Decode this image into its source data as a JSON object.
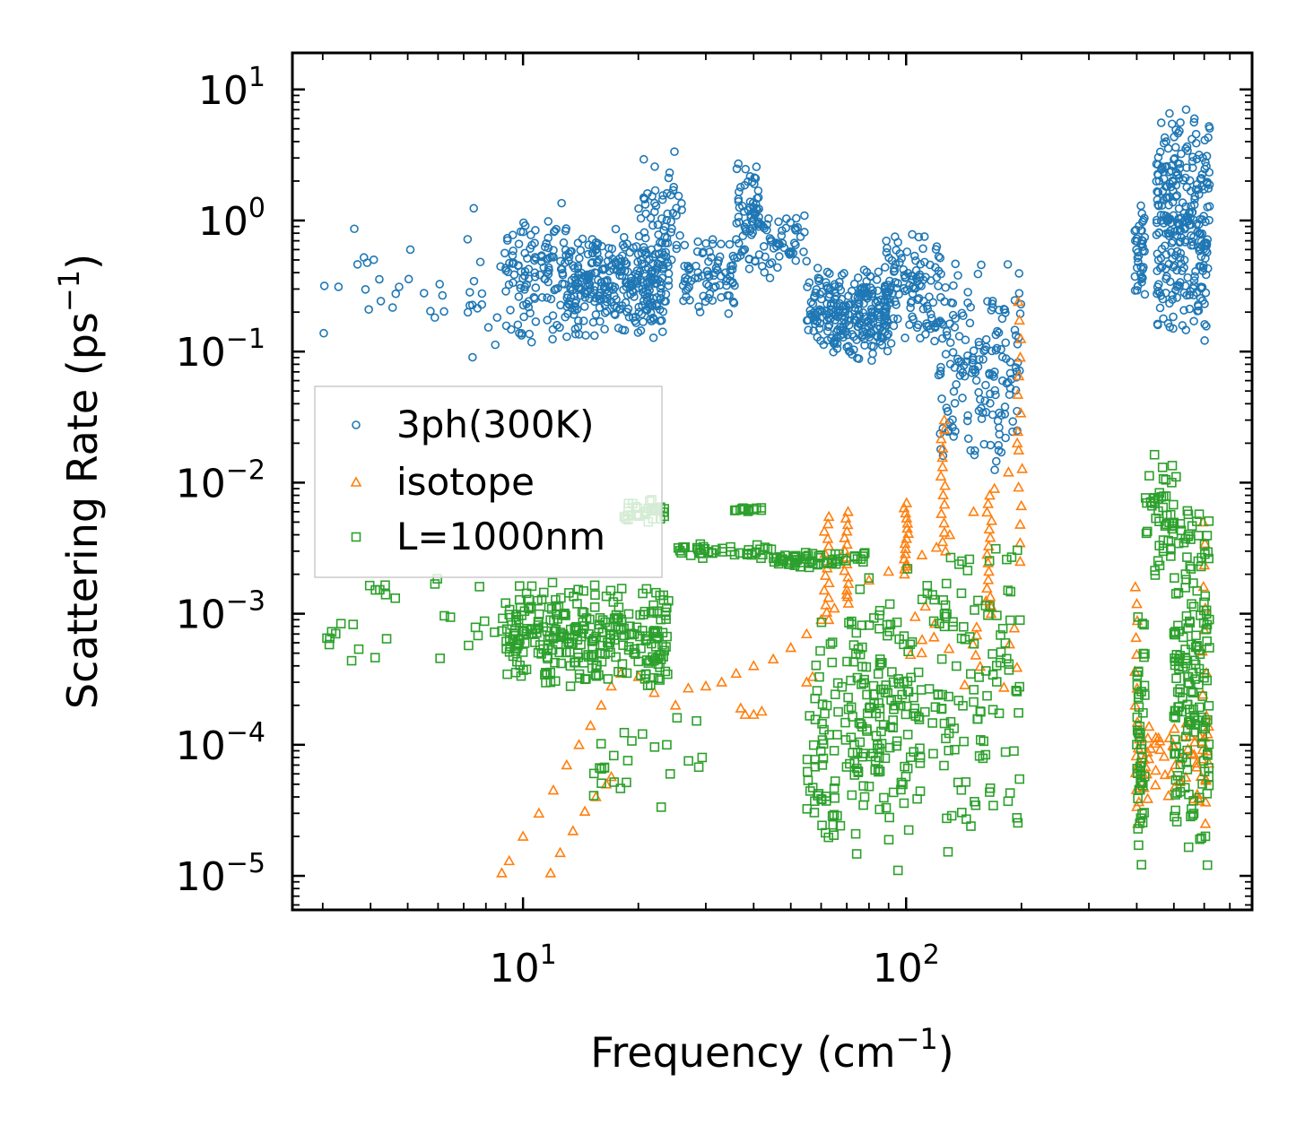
{
  "chart_data": {
    "type": "scatter",
    "xscale": "log",
    "yscale": "log",
    "xlim": [
      2.5,
      800
    ],
    "ylim": [
      5.5e-06,
      19
    ],
    "xlabel": "Frequency (cm",
    "xlabel_sup": "−1",
    "xlabel_tail": ")",
    "ylabel": "Scattering Rate (ps",
    "ylabel_sup": "−1",
    "ylabel_tail": ")",
    "legend_position": "center-left",
    "x_ticks": [
      {
        "value": 10,
        "base": "10",
        "exp": "1"
      },
      {
        "value": 100,
        "base": "10",
        "exp": "2"
      }
    ],
    "y_ticks": [
      {
        "value": 10,
        "base": "10",
        "exp": "1"
      },
      {
        "value": 1,
        "base": "10",
        "exp": "0"
      },
      {
        "value": 0.1,
        "base": "10",
        "exp": "−1"
      },
      {
        "value": 0.01,
        "base": "10",
        "exp": "−2"
      },
      {
        "value": 0.001,
        "base": "10",
        "exp": "−3"
      },
      {
        "value": 0.0001,
        "base": "10",
        "exp": "−4"
      },
      {
        "value": 1e-05,
        "base": "10",
        "exp": "−5"
      }
    ],
    "series": [
      {
        "name": "3ph(300K)",
        "marker": "circle",
        "color": "#1f77b4",
        "clusters": [
          {
            "x": [
              3,
              9
            ],
            "y": [
              0.05,
              1.8
            ],
            "n": 40
          },
          {
            "x": [
              9,
              13
            ],
            "y": [
              0.1,
              1.5
            ],
            "n": 120
          },
          {
            "x": [
              13,
              24
            ],
            "y": [
              0.12,
              0.9
            ],
            "n": 320
          },
          {
            "x": [
              20,
              26
            ],
            "y": [
              0.3,
              3.8
            ],
            "n": 60
          },
          {
            "x": [
              26,
              36
            ],
            "y": [
              0.18,
              0.8
            ],
            "n": 80
          },
          {
            "x": [
              36,
              42
            ],
            "y": [
              0.4,
              3.2
            ],
            "n": 70
          },
          {
            "x": [
              42,
              55
            ],
            "y": [
              0.35,
              1.2
            ],
            "n": 50
          },
          {
            "x": [
              55,
              90
            ],
            "y": [
              0.08,
              0.45
            ],
            "n": 260
          },
          {
            "x": [
              88,
              125
            ],
            "y": [
              0.1,
              0.9
            ],
            "n": 120
          },
          {
            "x": [
              120,
              200
            ],
            "y": [
              0.01,
              0.6
            ],
            "n": 170
          },
          {
            "x": [
              395,
              420
            ],
            "y": [
              0.25,
              1.4
            ],
            "n": 40
          },
          {
            "x": [
              450,
              620
            ],
            "y": [
              0.1,
              9
            ],
            "n": 300
          }
        ]
      },
      {
        "name": "isotope",
        "marker": "triangle",
        "color": "#ff7f0e",
        "points": [
          [
            8.8,
            1.05e-05
          ],
          [
            9.2,
            1.3e-05
          ],
          [
            10,
            2e-05
          ],
          [
            11,
            3e-05
          ],
          [
            12,
            4.5e-05
          ],
          [
            13,
            7e-05
          ],
          [
            14,
            0.0001
          ],
          [
            15,
            0.00014
          ],
          [
            16,
            0.0002
          ],
          [
            17,
            0.00028
          ],
          [
            18,
            0.00035
          ],
          [
            20,
            0.00033
          ],
          [
            22,
            0.00025
          ],
          [
            25,
            0.0002
          ],
          [
            27,
            0.00027
          ],
          [
            30,
            0.00028
          ],
          [
            33,
            0.0003
          ],
          [
            36,
            0.00035
          ],
          [
            40,
            0.0004
          ],
          [
            45,
            0.00045
          ],
          [
            50,
            0.00055
          ],
          [
            55,
            0.0007
          ],
          [
            60,
            0.0009
          ],
          [
            65,
            0.0011
          ],
          [
            70,
            0.0014
          ],
          [
            80,
            0.0018
          ],
          [
            90,
            0.0021
          ],
          [
            100,
            0.0023
          ],
          [
            110,
            0.0028
          ],
          [
            120,
            0.0032
          ],
          [
            130,
            0.004
          ],
          [
            150,
            0.006
          ],
          [
            170,
            0.009
          ],
          [
            185,
            0.012
          ],
          [
            195,
            0.02
          ],
          [
            11.8,
            1.05e-05
          ],
          [
            12.5,
            1.5e-05
          ],
          [
            13.5,
            2.2e-05
          ],
          [
            14.5,
            3.1e-05
          ],
          [
            15.5,
            4e-05
          ],
          [
            16.5,
            5e-05
          ],
          [
            17,
            5.7e-05
          ],
          [
            37,
            0.00019
          ],
          [
            38,
            0.00017
          ],
          [
            40,
            0.00017
          ],
          [
            42,
            0.00018
          ],
          [
            55,
            0.0003
          ],
          [
            57,
            0.00033
          ]
        ],
        "spikes": [
          {
            "x": 62,
            "y": [
              0.0009,
              0.0055
            ]
          },
          {
            "x": 70,
            "y": [
              0.0012,
              0.006
            ]
          },
          {
            "x": 100,
            "y": [
              0.002,
              0.007
            ]
          },
          {
            "x": 125,
            "y": [
              0.003,
              0.03
            ]
          },
          {
            "x": 165,
            "y": [
              0.001,
              0.008
            ]
          },
          {
            "x": 198,
            "y": [
              0.0025,
              0.24
            ]
          },
          {
            "x": 400,
            "y": [
              2.5e-05,
              0.0016
            ]
          },
          {
            "x": 600,
            "y": [
              2.5e-05,
              0.005
            ]
          }
        ],
        "clusters": [
          {
            "x": [
              400,
              620
            ],
            "y": [
              3e-05,
              0.0002
            ],
            "n": 60
          },
          {
            "x": [
              100,
              200
            ],
            "y": [
              0.00018,
              0.002
            ],
            "n": 20
          }
        ]
      },
      {
        "name": "L=1000nm",
        "marker": "square",
        "color": "#2ca02c",
        "clusters": [
          {
            "x": [
              3,
              9
            ],
            "y": [
              0.0003,
              0.0025
            ],
            "n": 30
          },
          {
            "x": [
              9,
              24
            ],
            "y": [
              0.00025,
              0.0018
            ],
            "n": 300
          },
          {
            "x": [
              18,
              24
            ],
            "y": [
              0.005,
              0.0075
            ],
            "n": 30
          },
          {
            "x": [
              25,
              45
            ],
            "y": [
              0.0025,
              0.0035
            ],
            "n": 40
          },
          {
            "x": [
              35,
              42
            ],
            "y": [
              0.006,
              0.0065
            ],
            "n": 15
          },
          {
            "x": [
              15,
              30
            ],
            "y": [
              3e-05,
              0.0003
            ],
            "n": 25
          },
          {
            "x": [
              45,
              80
            ],
            "y": [
              0.0022,
              0.003
            ],
            "n": 60
          },
          {
            "x": [
              55,
              70
            ],
            "y": [
              1e-05,
              0.0015
            ],
            "n": 60
          },
          {
            "x": [
              70,
              110
            ],
            "y": [
              1e-05,
              0.0025
            ],
            "n": 160
          },
          {
            "x": [
              110,
              200
            ],
            "y": [
              1e-05,
              0.005
            ],
            "n": 120
          },
          {
            "x": [
              400,
              420
            ],
            "y": [
              1.1e-05,
              0.0012
            ],
            "n": 50
          },
          {
            "x": [
              420,
              500
            ],
            "y": [
              0.0015,
              0.02
            ],
            "n": 50
          },
          {
            "x": [
              500,
              620
            ],
            "y": [
              1e-05,
              0.012
            ],
            "n": 180
          }
        ]
      }
    ]
  }
}
